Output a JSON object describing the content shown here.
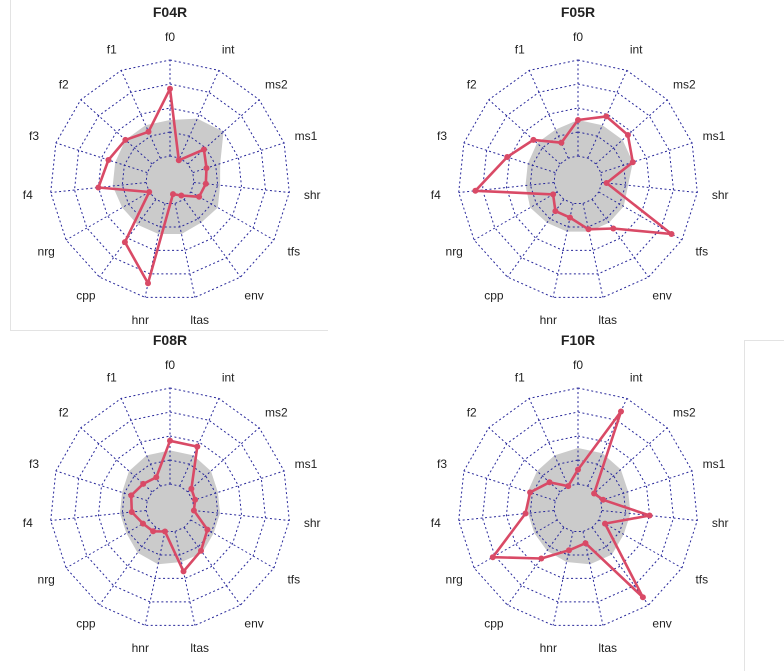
{
  "chart_data": [
    {
      "type": "radar",
      "title": "F04R",
      "axes": [
        "f0",
        "int",
        "ms2",
        "ms1",
        "shr",
        "tfs",
        "env",
        "ltas",
        "hnr",
        "cpp",
        "nrg",
        "f4",
        "f3",
        "f2",
        "f1"
      ],
      "rlim": [
        0,
        5
      ],
      "reference_values": [
        2.5,
        2.8,
        3.0,
        2.2,
        2.1,
        2.3,
        2.2,
        2.3,
        2.3,
        2.3,
        2.3,
        2.4,
        2.4,
        2.5,
        2.5
      ],
      "values": [
        3.8,
        0.9,
        1.9,
        1.6,
        1.5,
        1.4,
        0.8,
        0.6,
        4.4,
        3.2,
        1.0,
        3.0,
        2.7,
        2.5,
        2.2
      ]
    },
    {
      "type": "radar",
      "title": "F05R",
      "axes": [
        "f0",
        "int",
        "ms2",
        "ms1",
        "shr",
        "tfs",
        "env",
        "ltas",
        "hnr",
        "cpp",
        "nrg",
        "f4",
        "f3",
        "f2",
        "f1"
      ],
      "rlim": [
        0,
        5
      ],
      "reference_values": [
        2.5,
        2.5,
        2.5,
        2.4,
        2.1,
        2.2,
        2.2,
        2.2,
        2.2,
        2.2,
        2.3,
        2.2,
        2.2,
        2.3,
        2.3
      ],
      "values": [
        2.5,
        2.9,
        2.8,
        2.4,
        1.2,
        4.5,
        2.5,
        2.1,
        1.6,
        1.6,
        1.2,
        4.3,
        3.1,
        2.5,
        1.7
      ]
    },
    {
      "type": "radar",
      "title": "F08R",
      "axes": [
        "f0",
        "int",
        "ms2",
        "ms1",
        "shr",
        "tfs",
        "env",
        "ltas",
        "hnr",
        "cpp",
        "nrg",
        "f4",
        "f3",
        "f2",
        "f1"
      ],
      "rlim": [
        0,
        5
      ],
      "reference_values": [
        2.4,
        2.4,
        2.3,
        2.1,
        2.1,
        2.1,
        2.3,
        2.3,
        2.4,
        2.3,
        2.1,
        2.1,
        2.1,
        2.3,
        2.4
      ],
      "values": [
        2.8,
        2.8,
        1.2,
        1.1,
        1.0,
        1.8,
        2.2,
        2.7,
        1.0,
        1.2,
        1.3,
        1.6,
        1.7,
        1.5,
        1.4
      ]
    },
    {
      "type": "radar",
      "title": "F10R",
      "axes": [
        "f0",
        "int",
        "ms2",
        "ms1",
        "shr",
        "tfs",
        "env",
        "ltas",
        "hnr",
        "cpp",
        "nrg",
        "f4",
        "f3",
        "f2",
        "f1"
      ],
      "rlim": [
        0,
        5
      ],
      "reference_values": [
        2.5,
        2.5,
        2.4,
        2.2,
        2.2,
        2.2,
        2.4,
        2.4,
        2.3,
        2.2,
        2.1,
        2.1,
        2.2,
        2.3,
        2.4
      ],
      "values": [
        1.6,
        4.4,
        0.9,
        1.1,
        3.0,
        1.3,
        4.6,
        1.5,
        1.8,
        2.6,
        4.1,
        2.2,
        2.1,
        1.6,
        1.0
      ]
    }
  ],
  "colors": {
    "series": "#d94a66",
    "reference_fill": "#cbcbcb",
    "grid": "#27279a",
    "text": "#222222"
  }
}
